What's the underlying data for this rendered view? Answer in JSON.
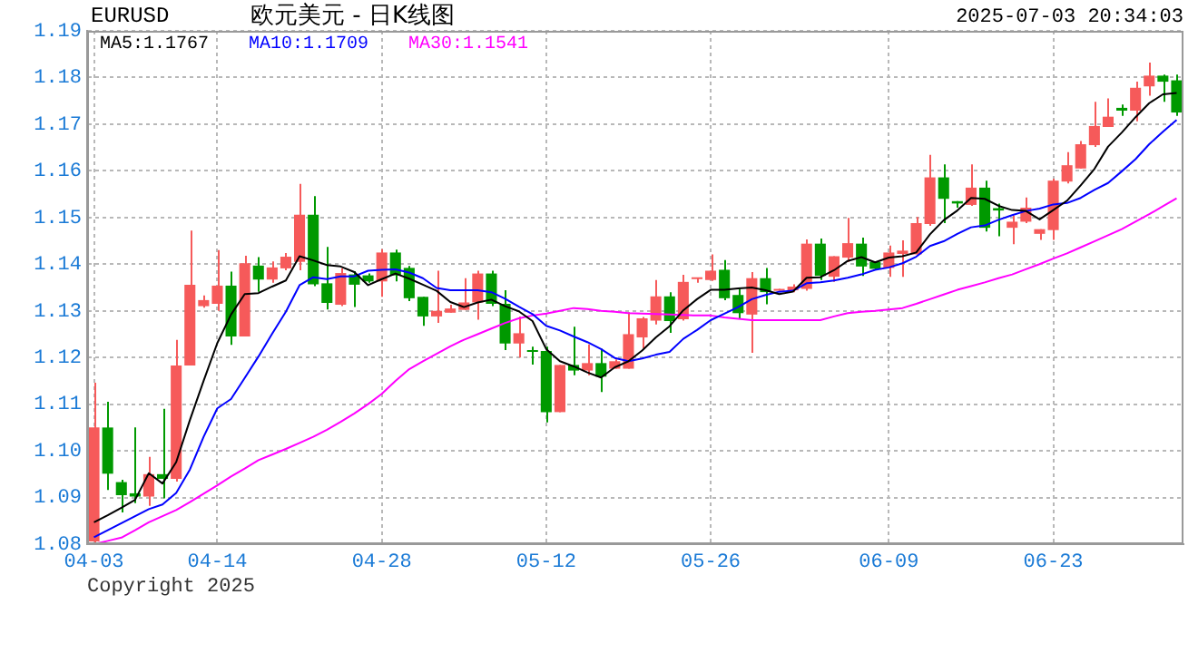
{
  "chart_data": {
    "type": "candlestick",
    "title": "欧元美元 - 日K线图",
    "subtitle": "EURUSD",
    "annotations": [
      "2025-07-03 20:34:03",
      "Copyright 2025"
    ],
    "categories": [
      "04-03",
      null,
      null,
      null,
      null,
      null,
      null,
      null,
      null,
      "04-14",
      null,
      null,
      null,
      null,
      null,
      null,
      null,
      null,
      null,
      null,
      null,
      "04-28",
      null,
      null,
      null,
      null,
      null,
      null,
      null,
      null,
      null,
      null,
      null,
      "05-12",
      null,
      null,
      null,
      null,
      null,
      null,
      null,
      null,
      null,
      null,
      null,
      "05-26",
      null,
      null,
      null,
      null,
      null,
      null,
      null,
      null,
      null,
      null,
      null,
      null,
      "06-09",
      null,
      null,
      null,
      null,
      null,
      null,
      null,
      null,
      null,
      null,
      null,
      "06-23",
      null,
      null,
      null,
      null,
      null,
      null,
      null,
      null,
      null
    ],
    "ohlc": [
      [
        1.0806,
        1.1146,
        1.08,
        1.105
      ],
      [
        1.105,
        1.1105,
        1.0916,
        1.0951
      ],
      [
        1.0933,
        1.0938,
        1.0868,
        1.0905
      ],
      [
        1.0909,
        1.105,
        1.0888,
        1.0902
      ],
      [
        1.0902,
        1.0987,
        1.0882,
        1.095
      ],
      [
        1.095,
        1.109,
        1.0898,
        1.094
      ],
      [
        1.094,
        1.1238,
        1.0934,
        1.1183
      ],
      [
        1.1183,
        1.1472,
        1.1183,
        1.1356
      ],
      [
        1.131,
        1.1333,
        1.1307,
        1.1323
      ],
      [
        1.1315,
        1.143,
        1.13,
        1.1354
      ],
      [
        1.1354,
        1.1384,
        1.1227,
        1.1245
      ],
      [
        1.1245,
        1.1418,
        1.1245,
        1.1402
      ],
      [
        1.1397,
        1.1415,
        1.1341,
        1.1367
      ],
      [
        1.1367,
        1.1406,
        1.136,
        1.1393
      ],
      [
        1.1391,
        1.1424,
        1.1387,
        1.1416
      ],
      [
        1.1405,
        1.1572,
        1.1387,
        1.1506
      ],
      [
        1.1506,
        1.1546,
        1.1353,
        1.1357
      ],
      [
        1.1359,
        1.1437,
        1.1303,
        1.1317
      ],
      [
        1.1313,
        1.1391,
        1.131,
        1.1381
      ],
      [
        1.1378,
        1.1385,
        1.1308,
        1.1356
      ],
      [
        1.1376,
        1.138,
        1.136,
        1.1363
      ],
      [
        1.1363,
        1.1432,
        1.133,
        1.1425
      ],
      [
        1.1425,
        1.1431,
        1.1363,
        1.1376
      ],
      [
        1.1392,
        1.1396,
        1.1321,
        1.1327
      ],
      [
        1.133,
        1.133,
        1.1268,
        1.1288
      ],
      [
        1.1288,
        1.1386,
        1.1274,
        1.13
      ],
      [
        1.1296,
        1.1313,
        1.1296,
        1.1305
      ],
      [
        1.1302,
        1.137,
        1.1302,
        1.1318
      ],
      [
        1.1318,
        1.1386,
        1.1281,
        1.138
      ],
      [
        1.138,
        1.1386,
        1.131,
        1.1315
      ],
      [
        1.1315,
        1.1344,
        1.1216,
        1.123
      ],
      [
        1.123,
        1.1288,
        1.12,
        1.1252
      ],
      [
        1.1214,
        1.1223,
        1.1185,
        1.1212
      ],
      [
        1.1214,
        1.1223,
        1.1061,
        1.1083
      ],
      [
        1.1083,
        1.1184,
        1.1083,
        1.1184
      ],
      [
        1.1184,
        1.1266,
        1.1162,
        1.1172
      ],
      [
        1.1172,
        1.1228,
        1.1162,
        1.1188
      ],
      [
        1.1188,
        1.1219,
        1.1126,
        1.1159
      ],
      [
        1.1176,
        1.1196,
        1.1176,
        1.1192
      ],
      [
        1.1176,
        1.1297,
        1.1176,
        1.125
      ],
      [
        1.1243,
        1.1287,
        1.122,
        1.1284
      ],
      [
        1.1279,
        1.1366,
        1.1271,
        1.1331
      ],
      [
        1.1331,
        1.134,
        1.1253,
        1.1278
      ],
      [
        1.1282,
        1.1377,
        1.1279,
        1.1362
      ],
      [
        1.1368,
        1.137,
        1.136,
        1.137
      ],
      [
        1.1366,
        1.1421,
        1.1364,
        1.1386
      ],
      [
        1.1388,
        1.1409,
        1.1323,
        1.1327
      ],
      [
        1.1334,
        1.1347,
        1.1282,
        1.1295
      ],
      [
        1.1292,
        1.1383,
        1.121,
        1.137
      ],
      [
        1.137,
        1.1392,
        1.1314,
        1.134
      ],
      [
        1.1343,
        1.1347,
        1.1343,
        1.1347
      ],
      [
        1.1344,
        1.1357,
        1.134,
        1.1352
      ],
      [
        1.1347,
        1.1453,
        1.1343,
        1.1444
      ],
      [
        1.1444,
        1.1455,
        1.1366,
        1.1375
      ],
      [
        1.1373,
        1.1417,
        1.1362,
        1.1417
      ],
      [
        1.1414,
        1.1499,
        1.1405,
        1.1445
      ],
      [
        1.1444,
        1.1457,
        1.1375,
        1.1395
      ],
      [
        1.1405,
        1.1405,
        1.1388,
        1.139
      ],
      [
        1.1392,
        1.144,
        1.1373,
        1.1425
      ],
      [
        1.1422,
        1.1451,
        1.1373,
        1.1429
      ],
      [
        1.1421,
        1.1501,
        1.1421,
        1.1488
      ],
      [
        1.1486,
        1.1634,
        1.1482,
        1.1586
      ],
      [
        1.1586,
        1.1614,
        1.1488,
        1.154
      ],
      [
        1.1535,
        1.1535,
        1.1521,
        1.153
      ],
      [
        1.1527,
        1.1614,
        1.1525,
        1.1564
      ],
      [
        1.1564,
        1.1579,
        1.147,
        1.1478
      ],
      [
        1.152,
        1.153,
        1.146,
        1.1515
      ],
      [
        1.1478,
        1.1504,
        1.1443,
        1.1491
      ],
      [
        1.1491,
        1.1543,
        1.1488,
        1.1521
      ],
      [
        1.1465,
        1.1475,
        1.1452,
        1.1475
      ],
      [
        1.1473,
        1.1583,
        1.1452,
        1.1579
      ],
      [
        1.1577,
        1.164,
        1.1573,
        1.1612
      ],
      [
        1.1605,
        1.1664,
        1.1605,
        1.1657
      ],
      [
        1.1655,
        1.1748,
        1.1651,
        1.1696
      ],
      [
        1.1694,
        1.1755,
        1.1694,
        1.1716
      ],
      [
        1.1735,
        1.1742,
        1.1718,
        1.1729
      ],
      [
        1.1729,
        1.1791,
        1.1706,
        1.1778
      ],
      [
        1.1781,
        1.1832,
        1.1761,
        1.1804
      ],
      [
        1.1804,
        1.1806,
        1.1748,
        1.1791
      ],
      [
        1.1794,
        1.1806,
        1.1718,
        1.1725
      ]
    ],
    "colors": [
      "#f65a5a",
      "#009900",
      "#009900",
      "#009900",
      "#f65a5a",
      "#009900",
      "#f65a5a",
      "#f65a5a",
      "#f65a5a",
      "#f65a5a",
      "#009900",
      "#f65a5a",
      "#009900",
      "#f65a5a",
      "#f65a5a",
      "#f65a5a",
      "#009900",
      "#009900",
      "#f65a5a",
      "#009900",
      "#009900",
      "#f65a5a",
      "#009900",
      "#009900",
      "#009900",
      "#f65a5a",
      "#f65a5a",
      "#f65a5a",
      "#f65a5a",
      "#009900",
      "#009900",
      "#f65a5a",
      "#009900",
      "#009900",
      "#f65a5a",
      "#009900",
      "#f65a5a",
      "#009900",
      "#f65a5a",
      "#f65a5a",
      "#f65a5a",
      "#f65a5a",
      "#009900",
      "#f65a5a",
      "#f65a5a",
      "#f65a5a",
      "#009900",
      "#009900",
      "#f65a5a",
      "#009900",
      "#f65a5a",
      "#f65a5a",
      "#f65a5a",
      "#009900",
      "#f65a5a",
      "#f65a5a",
      "#009900",
      "#009900",
      "#f65a5a",
      "#f65a5a",
      "#f65a5a",
      "#f65a5a",
      "#009900",
      "#009900",
      "#f65a5a",
      "#009900",
      "#009900",
      "#f65a5a",
      "#f65a5a",
      "#f65a5a",
      "#f65a5a",
      "#f65a5a",
      "#f65a5a",
      "#f65a5a",
      "#f65a5a",
      "#009900",
      "#f65a5a",
      "#f65a5a",
      "#009900",
      "#009900"
    ],
    "series": [
      {
        "type": "line",
        "name": "MA5:1.1767",
        "color": "#000000",
        "values": [
          1.0847,
          1.0862,
          1.0878,
          1.0895,
          1.0952,
          1.093,
          1.0976,
          1.1066,
          1.115,
          1.1231,
          1.1292,
          1.1336,
          1.1338,
          1.1352,
          1.1365,
          1.1417,
          1.1408,
          1.1398,
          1.1395,
          1.1383,
          1.1355,
          1.1368,
          1.138,
          1.1369,
          1.1356,
          1.1343,
          1.1319,
          1.1308,
          1.1318,
          1.1324,
          1.131,
          1.1299,
          1.1278,
          1.1218,
          1.1192,
          1.1181,
          1.1168,
          1.1157,
          1.1179,
          1.1192,
          1.1215,
          1.1243,
          1.1267,
          1.1301,
          1.1325,
          1.1345,
          1.1345,
          1.1348,
          1.135,
          1.1344,
          1.1336,
          1.1341,
          1.1371,
          1.1372,
          1.1387,
          1.1407,
          1.1415,
          1.1404,
          1.1414,
          1.1417,
          1.1425,
          1.1464,
          1.1494,
          1.1515,
          1.1542,
          1.154,
          1.1525,
          1.1516,
          1.1514,
          1.1496,
          1.1516,
          1.1536,
          1.1569,
          1.1604,
          1.1652,
          1.1682,
          1.1715,
          1.1745,
          1.1764,
          1.1767
        ]
      },
      {
        "type": "line",
        "name": "MA10:1.1709",
        "color": "#0000ff",
        "values": [
          1.0815,
          1.083,
          1.0845,
          1.086,
          1.0875,
          1.0885,
          1.091,
          1.096,
          1.103,
          1.1091,
          1.1111,
          1.1156,
          1.1202,
          1.1251,
          1.1298,
          1.1355,
          1.1372,
          1.1368,
          1.1374,
          1.1374,
          1.1386,
          1.1388,
          1.1389,
          1.1382,
          1.137,
          1.1349,
          1.1344,
          1.1344,
          1.1344,
          1.134,
          1.1326,
          1.1309,
          1.1293,
          1.1268,
          1.1258,
          1.1245,
          1.1233,
          1.1218,
          1.1199,
          1.1192,
          1.1198,
          1.1206,
          1.1212,
          1.124,
          1.1259,
          1.128,
          1.1294,
          1.1308,
          1.1325,
          1.1334,
          1.1341,
          1.1343,
          1.1359,
          1.1361,
          1.1365,
          1.1371,
          1.1378,
          1.1388,
          1.1393,
          1.1402,
          1.1416,
          1.1439,
          1.1449,
          1.1465,
          1.1479,
          1.1483,
          1.1495,
          1.1505,
          1.1514,
          1.1519,
          1.1528,
          1.1531,
          1.1542,
          1.1559,
          1.1574,
          1.1599,
          1.1625,
          1.1657,
          1.1684,
          1.1709
        ]
      },
      {
        "type": "line",
        "name": "MA30:1.1541",
        "color": "#ff00ff",
        "values": [
          1.08,
          1.0807,
          1.0814,
          1.083,
          1.0847,
          1.086,
          1.0873,
          1.089,
          1.0908,
          1.0926,
          1.0945,
          1.0962,
          1.098,
          1.0992,
          1.1004,
          1.1017,
          1.103,
          1.1045,
          1.1062,
          1.108,
          1.11,
          1.1122,
          1.115,
          1.1175,
          1.1192,
          1.1208,
          1.1224,
          1.1238,
          1.125,
          1.1262,
          1.1274,
          1.1284,
          1.129,
          1.1294,
          1.13,
          1.1306,
          1.1304,
          1.13,
          1.1298,
          1.1295,
          1.1294,
          1.1293,
          1.1292,
          1.1291,
          1.129,
          1.129,
          1.1286,
          1.1283,
          1.128,
          1.128,
          1.128,
          1.128,
          1.128,
          1.128,
          1.1288,
          1.1295,
          1.1298,
          1.13,
          1.1303,
          1.1306,
          1.1315,
          1.1325,
          1.1335,
          1.1345,
          1.1353,
          1.1361,
          1.137,
          1.1378,
          1.1389,
          1.14,
          1.1412,
          1.1423,
          1.1436,
          1.1449,
          1.1462,
          1.1475,
          1.1491,
          1.1507,
          1.1524,
          1.1541
        ]
      }
    ],
    "ylim": [
      1.08,
      1.19
    ],
    "yticks": [
      1.08,
      1.09,
      {
        "value": 1.1,
        "label": "1.10"
      },
      1.11,
      1.12,
      1.13,
      1.14,
      1.15,
      1.16,
      1.17,
      1.18,
      1.19
    ],
    "grid": true,
    "legend": "top left",
    "marker": "none"
  }
}
